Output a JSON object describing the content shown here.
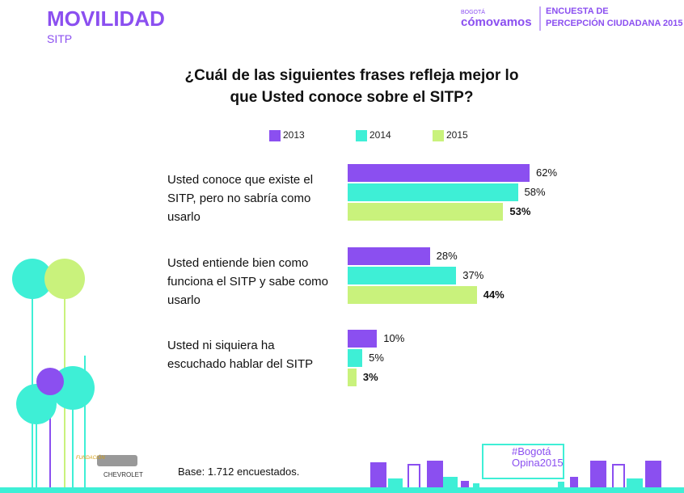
{
  "header": {
    "section": "MOVILIDAD",
    "subsection": "SITP",
    "logo_small": "BOGOTÁ",
    "logo_main": "cómovamos",
    "survey_line1": "ENCUESTA DE",
    "survey_line2": "PERCEPCIÓN CIUDADANA 2015"
  },
  "chart_data": {
    "type": "hbar",
    "title": "¿Cuál de las siguientes frases refleja mejor lo que Usted conoce sobre el SITP?",
    "categories": [
      "Usted conoce que existe el SITP, pero no sabría como usarlo",
      "Usted entiende bien como funciona el SITP y sabe como usarlo",
      "Usted ni siquiera ha escuchado hablar del SITP"
    ],
    "series": [
      {
        "name": "2013",
        "color": "#8b4ff0",
        "values": [
          62,
          28,
          10
        ],
        "value_labels": [
          "62%",
          "28%",
          "10%"
        ]
      },
      {
        "name": "2014",
        "color": "#3eefd6",
        "values": [
          58,
          37,
          5
        ],
        "value_labels": [
          "58%",
          "37%",
          "5%"
        ]
      },
      {
        "name": "2015",
        "color": "#c9f27c",
        "values": [
          53,
          44,
          3
        ],
        "value_labels": [
          "53%",
          "44%",
          "3%"
        ]
      }
    ]
  },
  "footer": {
    "base": "Base: 1.712 encuestados.",
    "hashtag_line1": "#Bogotá",
    "hashtag_line2": "Opina2015",
    "sponsor_small": "FUNDACIÓN",
    "sponsor": "CHEVROLET"
  }
}
